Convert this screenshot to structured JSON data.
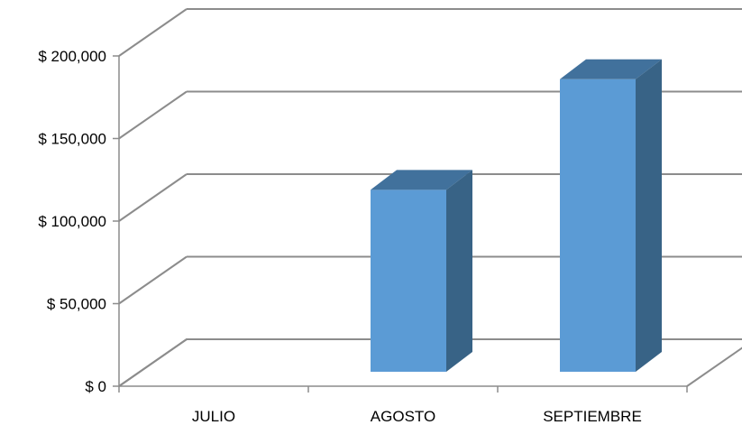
{
  "chart_data": {
    "type": "bar",
    "title": "",
    "xlabel": "",
    "ylabel": "",
    "categories": [
      "JULIO",
      "AGOSTO",
      "SEPTIEMBRE"
    ],
    "values": [
      0,
      120000,
      187000
    ],
    "ylim": [
      0,
      200000
    ],
    "y_ticks": [
      0,
      50000,
      100000,
      150000,
      200000
    ],
    "y_tick_labels": [
      "$ 0",
      "$ 50,000",
      "$ 100,000",
      "$ 150,000",
      "$ 200,000"
    ],
    "grid": true,
    "legend": "none",
    "style": "3d-column",
    "colors": {
      "bar_front": "#5b9bd5",
      "bar_top": "#41719c",
      "bar_side": "#386386",
      "grid": "#8c8c8c"
    }
  }
}
